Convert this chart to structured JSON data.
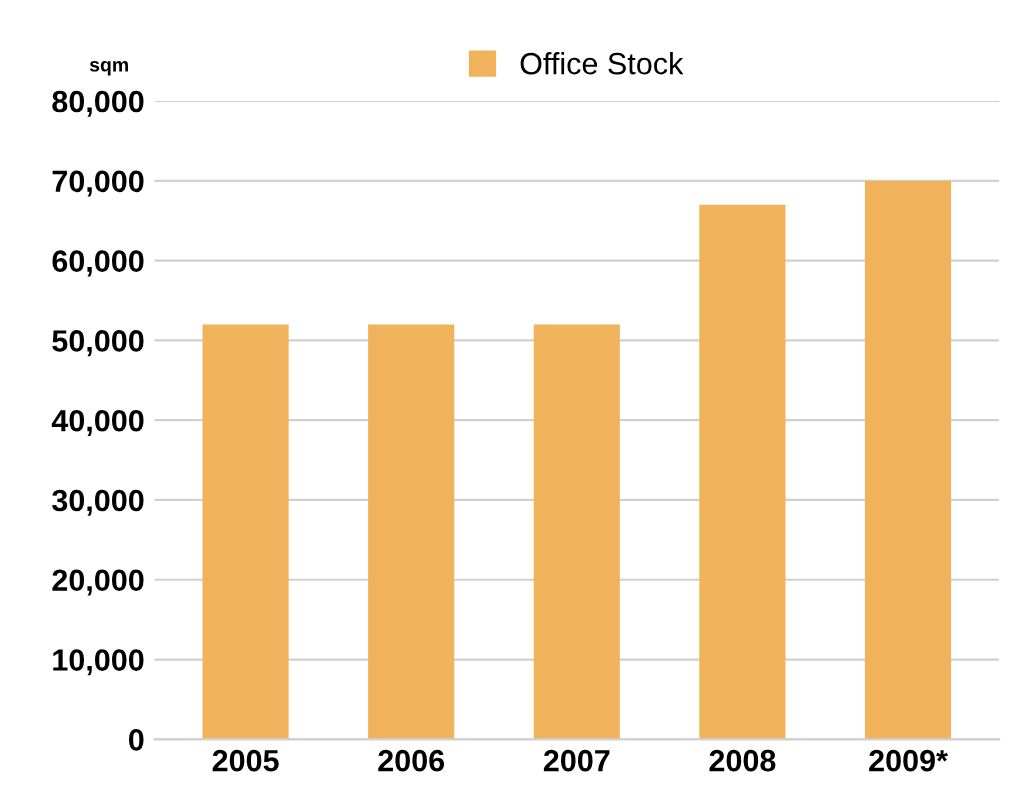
{
  "chart_data": {
    "type": "bar",
    "ylabel": "sqm",
    "categories": [
      "2005",
      "2006",
      "2007",
      "2008",
      "2009*"
    ],
    "series": [
      {
        "name": "Office Stock",
        "color": "#f0b25a",
        "values": [
          52000,
          52000,
          52000,
          67000,
          70000
        ]
      }
    ],
    "ylim": [
      0,
      80000
    ],
    "yticks": [
      {
        "value": 0,
        "label": "0"
      },
      {
        "value": 10000,
        "label": "10,000"
      },
      {
        "value": 20000,
        "label": "20,000"
      },
      {
        "value": 30000,
        "label": "30,000"
      },
      {
        "value": 40000,
        "label": "40,000"
      },
      {
        "value": 50000,
        "label": "50,000"
      },
      {
        "value": 60000,
        "label": "60,000"
      },
      {
        "value": 70000,
        "label": "70,000"
      },
      {
        "value": 80000,
        "label": "80,000"
      }
    ],
    "grid": "y",
    "legend": "top"
  }
}
